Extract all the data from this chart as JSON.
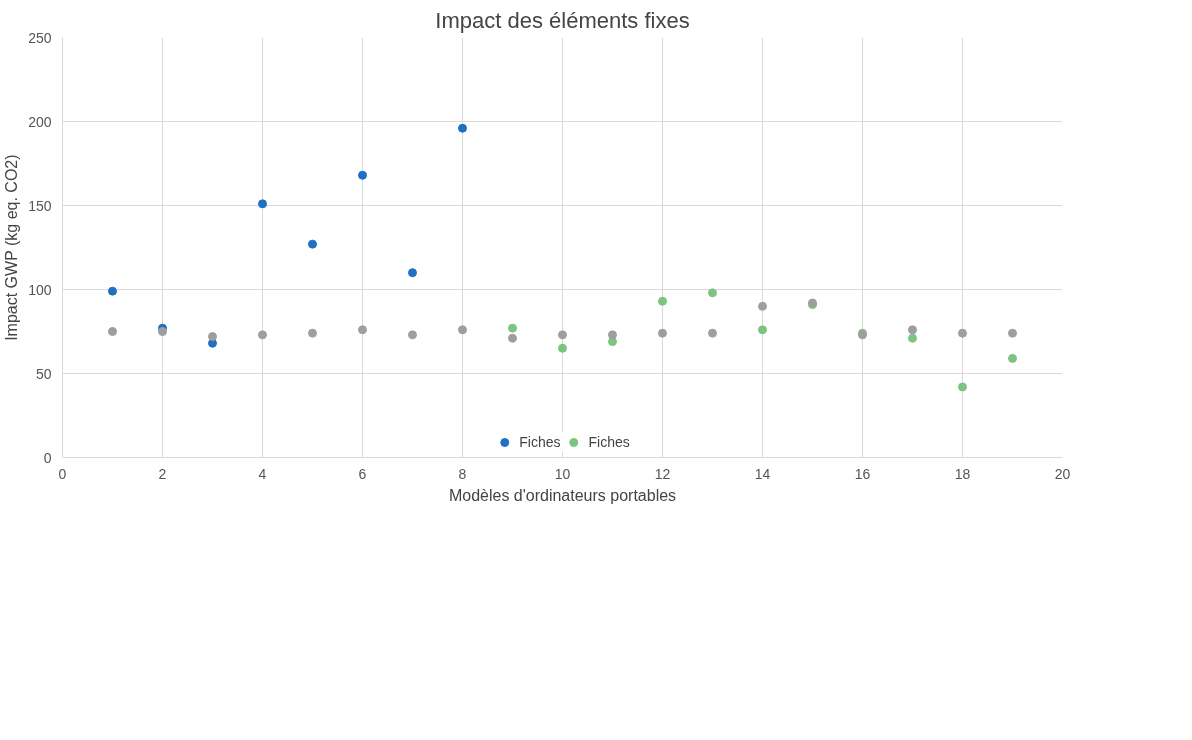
{
  "chart_data": {
    "type": "scatter",
    "title": "Impact des éléments fixes",
    "xlabel": "Modèles d'ordinateurs portables",
    "ylabel": "Impact GWP (kg eq. CO2)",
    "xlim": [
      0,
      20
    ],
    "xticks": [
      0,
      2,
      4,
      6,
      8,
      10,
      12,
      14,
      16,
      18,
      20
    ],
    "ylim": [
      0,
      250
    ],
    "yticks": [
      0,
      50,
      100,
      150,
      200,
      250
    ],
    "grid": true,
    "legend": "bottom",
    "marker": "circle",
    "series": [
      {
        "name": "Fiches",
        "color": "#1f6fc5",
        "x": [
          1,
          2,
          3,
          4,
          5,
          6,
          7,
          8
        ],
        "values": [
          99,
          77,
          68,
          151,
          127,
          168,
          110,
          196
        ]
      },
      {
        "name": "Fiches",
        "color": "#7cc47f",
        "x": [
          9,
          10,
          11,
          12,
          13,
          14,
          15,
          16,
          17,
          18,
          19
        ],
        "values": [
          77,
          65,
          69,
          93,
          98,
          76,
          91,
          74,
          71,
          42,
          59
        ]
      },
      {
        "color": "#9e9e9e",
        "x": [
          1,
          2,
          3,
          4,
          5,
          6,
          7,
          8,
          9,
          10,
          11,
          12,
          13,
          14,
          15,
          16,
          17,
          18,
          19
        ],
        "values": [
          75,
          75,
          72,
          73,
          74,
          76,
          73,
          76,
          71,
          73,
          73,
          74,
          74,
          90,
          92,
          73,
          76,
          74,
          74
        ]
      }
    ]
  }
}
